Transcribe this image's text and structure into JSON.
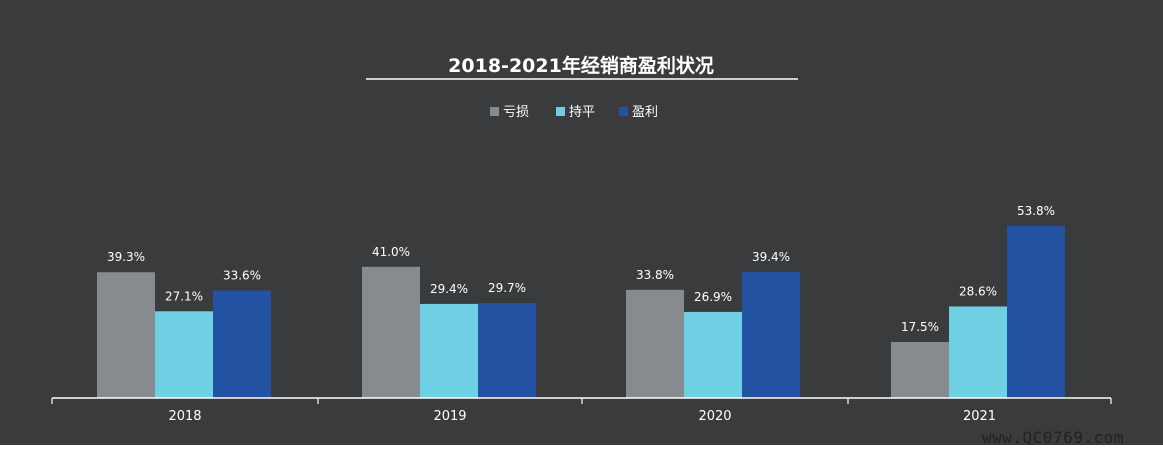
{
  "chart_data": {
    "type": "bar",
    "title": "2018-2021年经销商盈利状况",
    "categories": [
      "2018",
      "2019",
      "2020",
      "2021"
    ],
    "series": [
      {
        "name": "亏损",
        "values": [
          39.3,
          41.0,
          33.8,
          17.5
        ],
        "labels": [
          "39.3%",
          "41.0%",
          "33.8%",
          "17.5%"
        ]
      },
      {
        "name": "持平",
        "values": [
          27.1,
          29.4,
          26.9,
          28.6
        ],
        "labels": [
          "27.1%",
          "29.4%",
          "26.9%",
          "28.6%"
        ]
      },
      {
        "name": "盈利",
        "values": [
          33.6,
          29.7,
          39.4,
          53.8
        ],
        "labels": [
          "33.6%",
          "29.7%",
          "39.4%",
          "53.8%"
        ]
      }
    ],
    "unit": "%",
    "ylim": [
      0,
      60
    ],
    "grid": false,
    "legend": "top-center"
  },
  "colors": {
    "background": "#3a3b3d",
    "text": "#ffffff",
    "series": [
      "#858b8f",
      "#6fd0e3",
      "#2452a3"
    ]
  },
  "watermark": "www.QC0769.com"
}
